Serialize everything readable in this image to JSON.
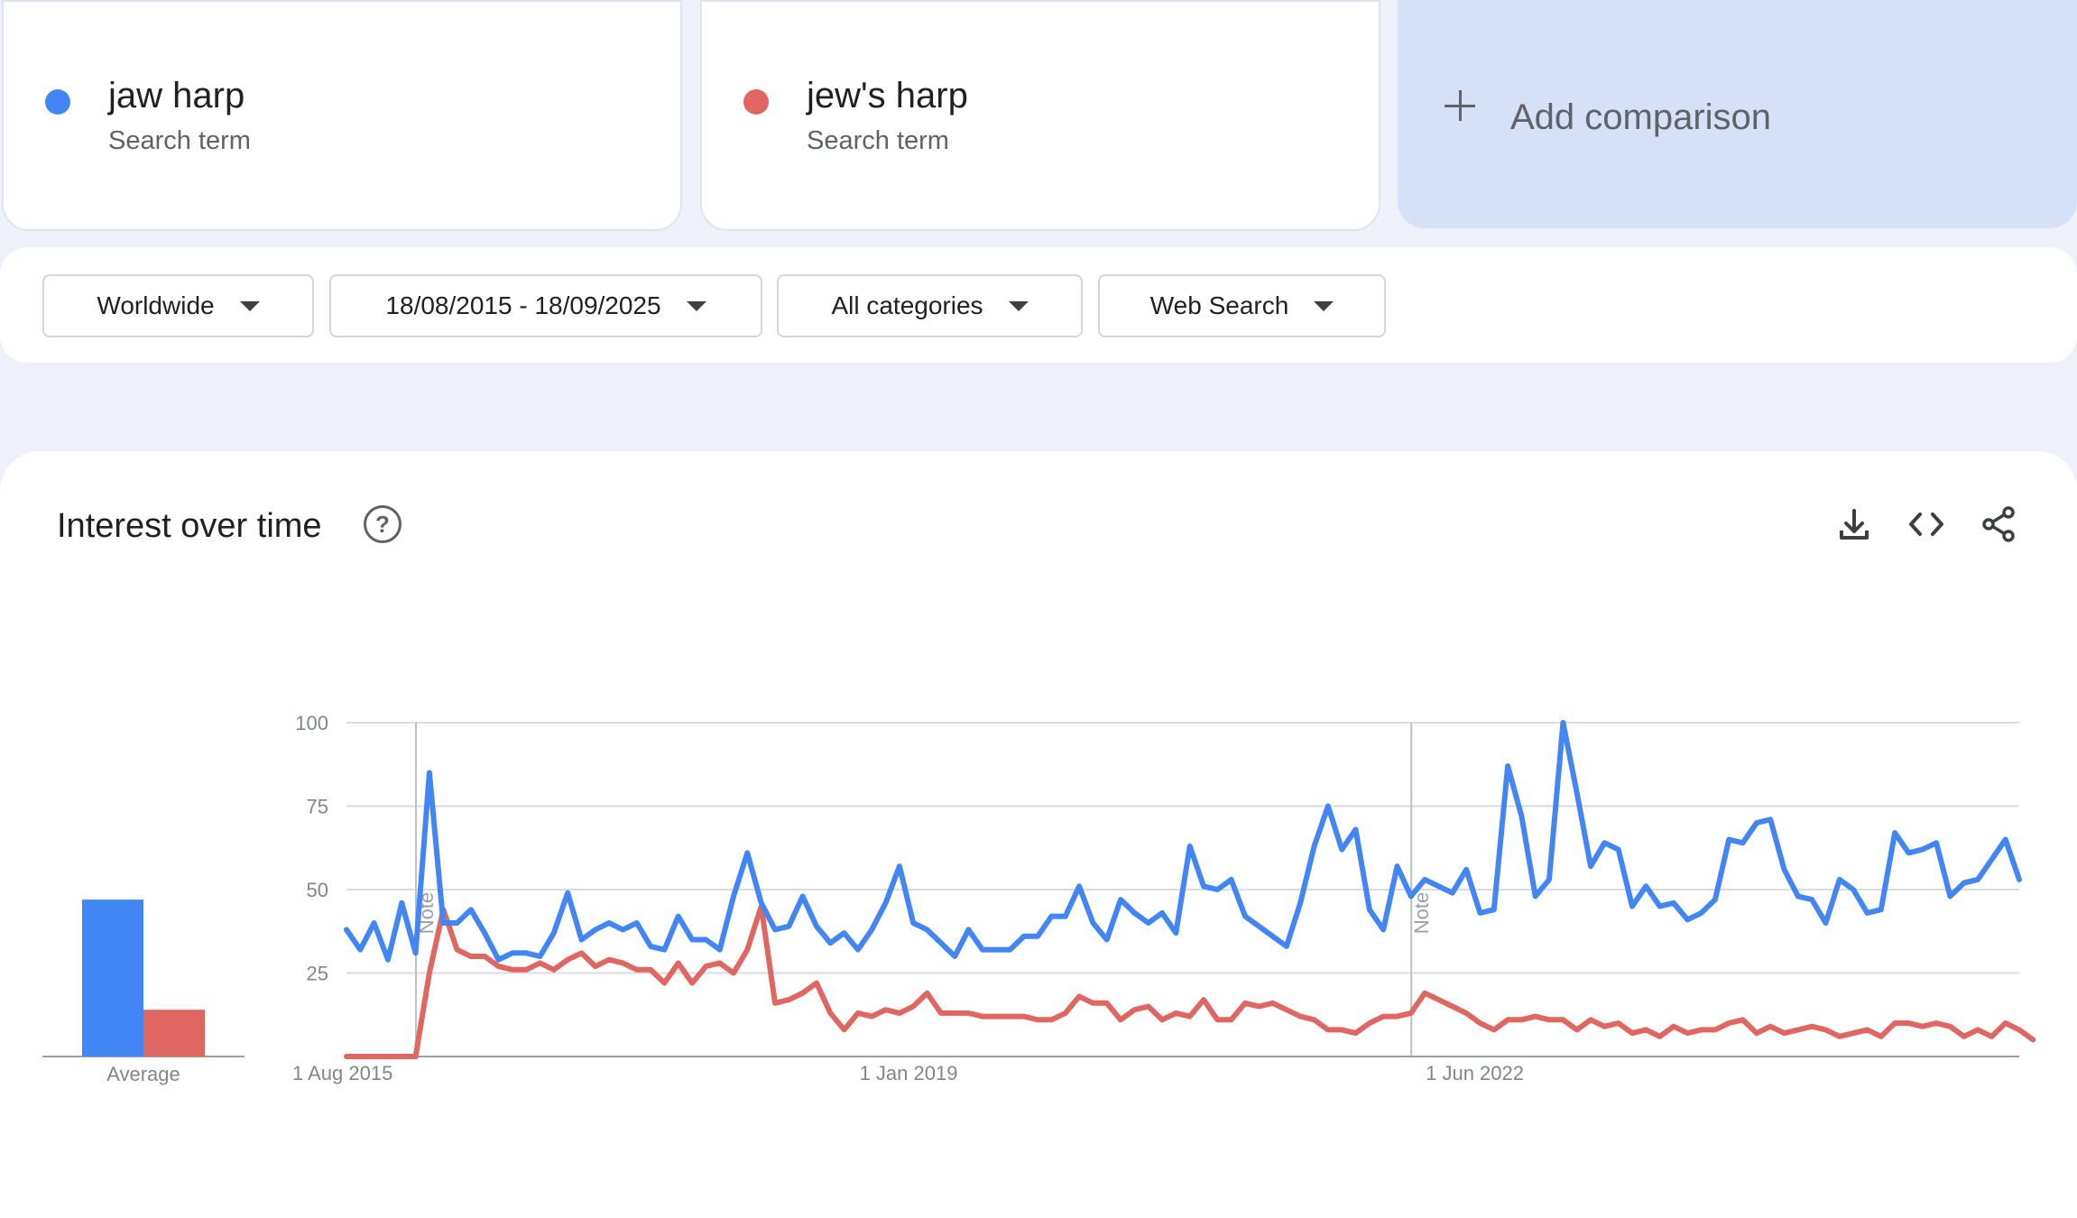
{
  "terms": [
    {
      "name": "jaw harp",
      "subtitle": "Search term",
      "color": "#4285f4"
    },
    {
      "name": "jew's harp",
      "subtitle": "Search term",
      "color": "#e06661"
    }
  ],
  "add_comparison": {
    "label": "Add comparison",
    "icon": "plus-icon"
  },
  "filters": {
    "region": "Worldwide",
    "date_range": "18/08/2015 - 18/09/2025",
    "category": "All categories",
    "search_type": "Web Search"
  },
  "panel": {
    "title": "Interest over time",
    "help_icon": "?",
    "tools": [
      "download-icon",
      "embed-code-icon",
      "share-icon"
    ]
  },
  "chart_data": [
    {
      "type": "bar",
      "categories": [
        "jaw harp",
        "jew's harp"
      ],
      "values": [
        47,
        14
      ],
      "xlabel": "Average",
      "colors": [
        "#4285f4",
        "#e06661"
      ],
      "ylim": [
        0,
        100
      ]
    },
    {
      "type": "line",
      "x_tick_labels": [
        "1 Aug 2015",
        "1 Jan 2019",
        "1 Jun 2022"
      ],
      "y_ticks": [
        25,
        50,
        75,
        100
      ],
      "ylim": [
        0,
        100
      ],
      "grid": true,
      "annotations": [
        {
          "label": "Note",
          "date": "2016-01"
        },
        {
          "label": "Note",
          "date": "2022-01"
        }
      ],
      "series": [
        {
          "name": "jaw harp",
          "color": "#4285f4",
          "values": [
            38,
            32,
            40,
            29,
            46,
            31,
            85,
            40,
            40,
            44,
            37,
            29,
            31,
            31,
            30,
            37,
            49,
            35,
            38,
            40,
            38,
            40,
            33,
            32,
            42,
            35,
            35,
            32,
            48,
            61,
            46,
            38,
            39,
            48,
            39,
            34,
            37,
            32,
            38,
            46,
            57,
            40,
            38,
            34,
            30,
            38,
            32,
            32,
            32,
            36,
            36,
            42,
            42,
            51,
            40,
            35,
            47,
            43,
            40,
            43,
            37,
            63,
            51,
            50,
            53,
            42,
            39,
            36,
            33,
            46,
            63,
            75,
            62,
            68,
            44,
            38,
            57,
            48,
            53,
            51,
            49,
            56,
            43,
            44,
            87,
            72,
            48,
            53,
            100,
            79,
            57,
            64,
            62,
            45,
            51,
            45,
            46,
            41,
            43,
            47,
            65,
            64,
            70,
            71,
            56,
            48,
            47,
            40,
            53,
            50,
            43,
            44,
            67,
            61,
            62,
            64,
            48,
            52,
            53,
            59,
            65,
            53
          ]
        },
        {
          "name": "jew's harp",
          "color": "#e06661",
          "values": [
            0,
            0,
            0,
            0,
            0,
            0,
            25,
            44,
            32,
            30,
            30,
            27,
            26,
            26,
            28,
            26,
            29,
            31,
            27,
            29,
            28,
            26,
            26,
            22,
            28,
            22,
            27,
            28,
            25,
            32,
            45,
            16,
            17,
            19,
            22,
            13,
            8,
            13,
            12,
            14,
            13,
            15,
            19,
            13,
            13,
            13,
            12,
            12,
            12,
            12,
            11,
            11,
            13,
            18,
            16,
            16,
            11,
            14,
            15,
            11,
            13,
            12,
            17,
            11,
            11,
            16,
            15,
            16,
            14,
            12,
            11,
            8,
            8,
            7,
            10,
            12,
            12,
            13,
            19,
            17,
            15,
            13,
            10,
            8,
            11,
            11,
            12,
            11,
            11,
            8,
            11,
            9,
            10,
            7,
            8,
            6,
            9,
            7,
            8,
            8,
            10,
            11,
            7,
            9,
            7,
            8,
            9,
            8,
            6,
            7,
            8,
            6,
            10,
            10,
            9,
            10,
            9,
            6,
            8,
            6,
            10,
            8,
            5
          ]
        }
      ]
    }
  ]
}
